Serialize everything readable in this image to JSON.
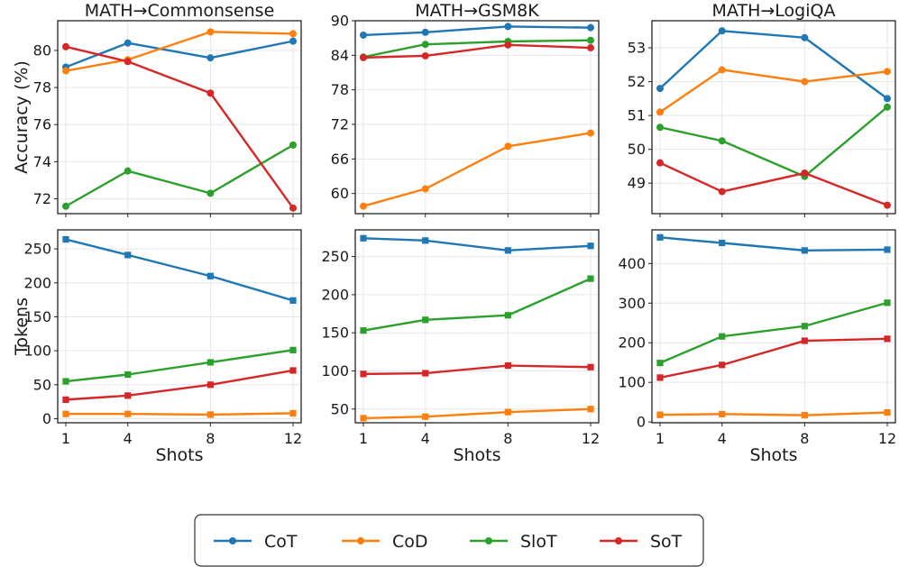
{
  "chart_data": {
    "type": "line",
    "x": [
      1,
      4,
      8,
      12
    ],
    "xlabel": "Shots",
    "legend_position": "bottom-center",
    "methods": [
      {
        "name": "CoT",
        "color": "#1f77b4"
      },
      {
        "name": "CoD",
        "color": "#ff7f0e"
      },
      {
        "name": "SloT",
        "color": "#2ca02c"
      },
      {
        "name": "SoT",
        "color": "#d62728"
      }
    ],
    "panels": [
      {
        "id": "acc-commonsense",
        "title": "MATH→Commonsense",
        "ylabel": "Accuracy (%)",
        "ylim": [
          71.2,
          81.6
        ],
        "yticks": [
          72,
          74,
          76,
          78,
          80
        ],
        "marker": "circle",
        "series": [
          [
            79.1,
            80.4,
            79.6,
            80.5
          ],
          [
            78.9,
            79.5,
            81.0,
            80.9
          ],
          [
            71.6,
            73.5,
            72.3,
            74.9
          ],
          [
            80.2,
            79.4,
            77.7,
            71.5
          ]
        ]
      },
      {
        "id": "acc-gsm8k",
        "title": "MATH→GSM8K",
        "ylabel": "",
        "ylim": [
          56.5,
          90.0
        ],
        "yticks": [
          60,
          66,
          72,
          78,
          84,
          90
        ],
        "marker": "circle",
        "series": [
          [
            87.5,
            88.0,
            89.0,
            88.8
          ],
          [
            57.8,
            60.8,
            68.2,
            70.5
          ],
          [
            83.7,
            85.9,
            86.4,
            86.6
          ],
          [
            83.6,
            83.9,
            85.8,
            85.3
          ]
        ]
      },
      {
        "id": "acc-logiqa",
        "title": "MATH→LogiQA",
        "ylabel": "",
        "ylim": [
          48.1,
          53.8
        ],
        "yticks": [
          49,
          50,
          51,
          52,
          53
        ],
        "marker": "circle",
        "series": [
          [
            51.8,
            53.5,
            53.3,
            51.5
          ],
          [
            51.1,
            52.35,
            52.0,
            52.3
          ],
          [
            50.65,
            50.25,
            49.2,
            51.25
          ],
          [
            49.6,
            48.75,
            49.3,
            48.35
          ]
        ]
      },
      {
        "id": "tok-commonsense",
        "title": "",
        "ylabel": "Tokens",
        "ylim": [
          -6,
          278
        ],
        "yticks": [
          0,
          50,
          100,
          150,
          200,
          250
        ],
        "marker": "square",
        "series": [
          [
            264,
            241,
            210,
            174
          ],
          [
            7,
            7,
            6,
            8
          ],
          [
            55,
            65,
            83,
            101
          ],
          [
            28,
            34,
            50,
            71
          ]
        ]
      },
      {
        "id": "tok-gsm8k",
        "title": "",
        "ylabel": "",
        "ylim": [
          32,
          285
        ],
        "yticks": [
          50,
          100,
          150,
          200,
          250
        ],
        "marker": "square",
        "series": [
          [
            274,
            271,
            258,
            264
          ],
          [
            38,
            40,
            46,
            50
          ],
          [
            153,
            167,
            173,
            221
          ],
          [
            96,
            97,
            107,
            105
          ]
        ]
      },
      {
        "id": "tok-logiqa",
        "title": "",
        "ylabel": "",
        "ylim": [
          -2,
          485
        ],
        "yticks": [
          0,
          100,
          200,
          300,
          400
        ],
        "marker": "square",
        "series": [
          [
            466,
            452,
            433,
            435
          ],
          [
            18,
            20,
            17,
            24
          ],
          [
            149,
            216,
            242,
            301
          ],
          [
            112,
            144,
            205,
            210
          ]
        ]
      }
    ]
  }
}
